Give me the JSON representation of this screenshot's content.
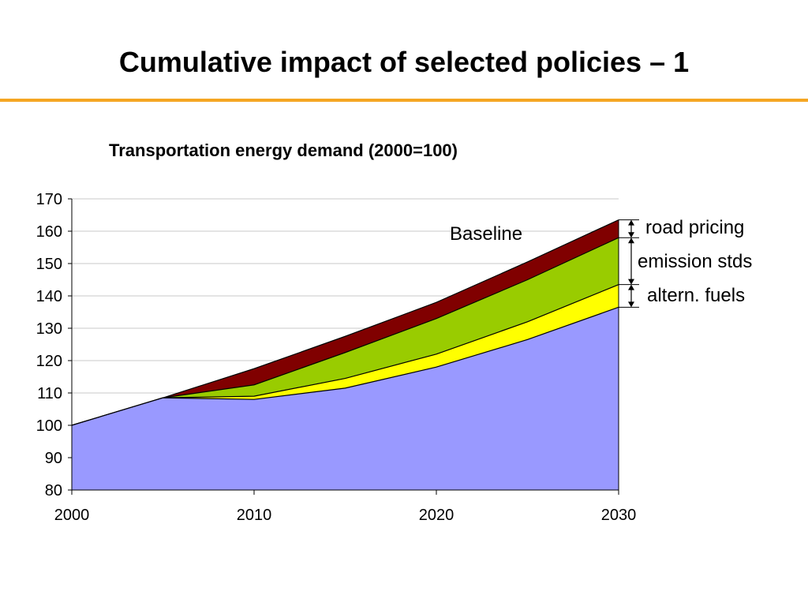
{
  "slide": {
    "title": "Cumulative impact of selected policies – 1",
    "rule_color": "#f5a623"
  },
  "chart_data": {
    "type": "area",
    "title": "Transportation energy demand (2000=100)",
    "x": [
      2000,
      2005,
      2010,
      2015,
      2020,
      2025,
      2030
    ],
    "xticks": [
      2000,
      2010,
      2020,
      2030
    ],
    "ylim": [
      80,
      170
    ],
    "yticks": [
      80,
      90,
      100,
      110,
      120,
      130,
      140,
      150,
      160,
      170
    ],
    "grid": "horizontal",
    "plot_background": "#ffffff",
    "series": [
      {
        "key": "policy_total",
        "values": [
          100,
          108.5,
          108,
          111.5,
          118,
          126.5,
          136.5
        ],
        "color": "#9999ff"
      },
      {
        "key": "alt_fuels",
        "values": [
          100,
          108.5,
          109,
          114.5,
          122,
          132,
          143.5
        ],
        "color": "#ffff00"
      },
      {
        "key": "emission",
        "values": [
          100,
          108.5,
          112.5,
          122.5,
          133,
          145,
          158
        ],
        "color": "#99cc00"
      },
      {
        "name": "Baseline",
        "values": [
          100,
          108.5,
          117.5,
          127.5,
          138,
          150.5,
          163.5
        ],
        "color": "#800000"
      }
    ],
    "annotations": {
      "baseline_label": "Baseline",
      "road_pricing": "road pricing",
      "emission_stds": "emission stds",
      "altern_fuels": "altern. fuels"
    }
  }
}
